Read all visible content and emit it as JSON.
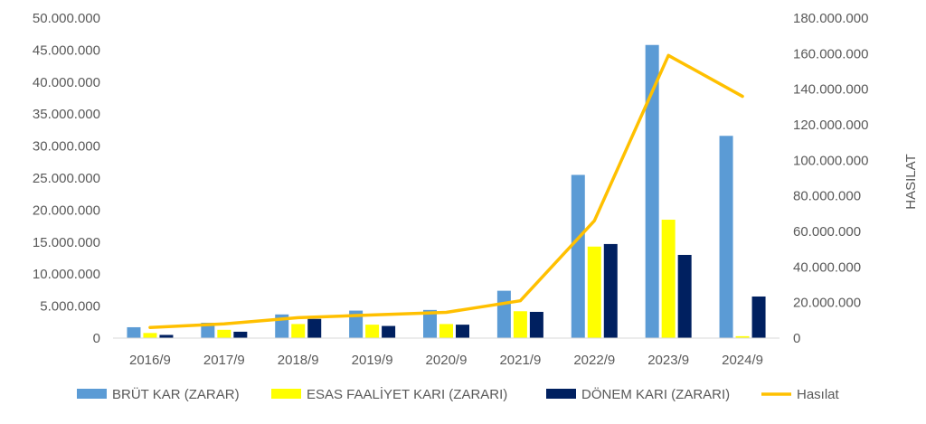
{
  "chart_data": {
    "type": "bar",
    "categories": [
      "2016/9",
      "2017/9",
      "2018/9",
      "2019/9",
      "2020/9",
      "2021/9",
      "2022/9",
      "2023/9",
      "2024/9"
    ],
    "series": [
      {
        "name": "BRÜT KAR (ZARAR)",
        "type": "bar",
        "axis": "left",
        "color": "#5B9BD5",
        "values": [
          1700000,
          2400000,
          3700000,
          4300000,
          4400000,
          7400000,
          25500000,
          45800000,
          31600000
        ]
      },
      {
        "name": "ESAS FAALİYET KARI (ZARARI)",
        "type": "bar",
        "axis": "left",
        "color": "#FFFF00",
        "values": [
          800000,
          1300000,
          2200000,
          2100000,
          2200000,
          4200000,
          14300000,
          18500000,
          300000
        ]
      },
      {
        "name": "DÖNEM KARI (ZARARI)",
        "type": "bar",
        "axis": "left",
        "color": "#002060",
        "values": [
          500000,
          1000000,
          3000000,
          1900000,
          2100000,
          4100000,
          14700000,
          13000000,
          6500000
        ]
      },
      {
        "name": "Hasılat",
        "type": "line",
        "axis": "right",
        "color": "#FFC000",
        "values": [
          6000000,
          8000000,
          11500000,
          13000000,
          14500000,
          21000000,
          66000000,
          159000000,
          136000000
        ]
      }
    ],
    "ylim_left": [
      0,
      50000000
    ],
    "left_ticks": [
      "0",
      "5.000.000",
      "10.000.000",
      "15.000.000",
      "20.000.000",
      "25.000.000",
      "30.000.000",
      "35.000.000",
      "40.000.000",
      "45.000.000",
      "50.000.000"
    ],
    "ylim_right": [
      0,
      180000000
    ],
    "right_ticks": [
      "0",
      "20.000.000",
      "40.000.000",
      "60.000.000",
      "80.000.000",
      "100.000.000",
      "120.000.000",
      "140.000.000",
      "160.000.000",
      "180.000.000"
    ],
    "ylabel_right": "HASILAT",
    "legend_position": "bottom",
    "grid": false
  }
}
